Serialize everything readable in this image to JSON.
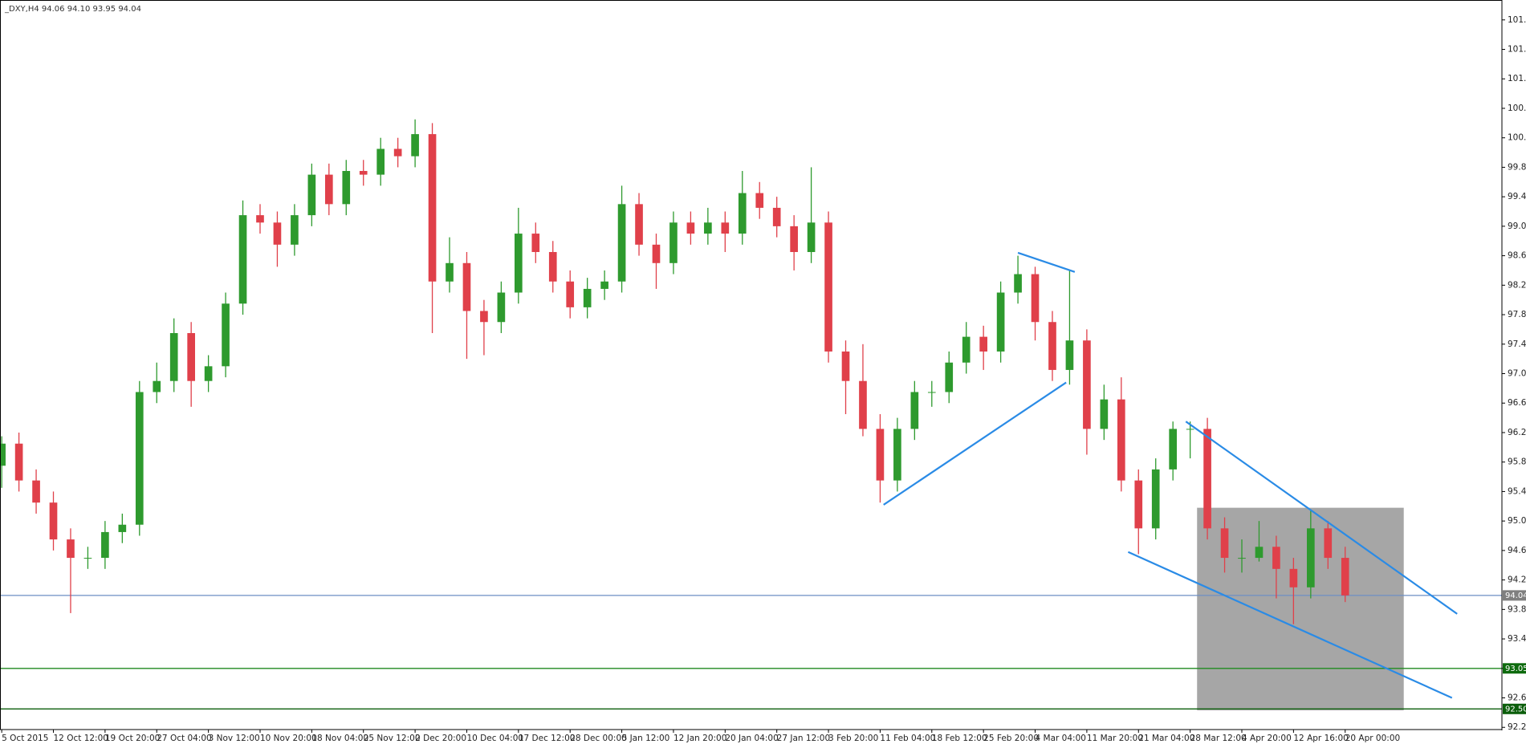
{
  "chart_data": {
    "type": "candlestick",
    "title": "_DXY,H4  94.06 94.10 93.95 94.04",
    "categories": [
      "5 Oct 2015",
      null,
      null,
      "12 Oct 12:00",
      null,
      null,
      "19 Oct 20:00",
      null,
      null,
      "27 Oct 04:00",
      null,
      null,
      "3 Nov 12:00",
      null,
      null,
      "10 Nov 20:00",
      null,
      null,
      "18 Nov 04:00",
      null,
      null,
      "25 Nov 12:00",
      null,
      null,
      "2 Dec 20:00",
      null,
      null,
      "10 Dec 04:00",
      null,
      null,
      "17 Dec 12:00",
      null,
      null,
      "28 Dec 00:00",
      null,
      null,
      "5 Jan 12:00",
      null,
      null,
      "12 Jan 20:00",
      null,
      null,
      "20 Jan 04:00",
      null,
      null,
      "27 Jan 12:00",
      null,
      null,
      "3 Feb 20:00",
      null,
      null,
      "11 Feb 04:00",
      null,
      null,
      "18 Feb 12:00",
      null,
      null,
      "25 Feb 20:00",
      null,
      null,
      "4 Mar 04:00",
      null,
      null,
      "11 Mar 20:00",
      null,
      null,
      "21 Mar 04:00",
      null,
      null,
      "28 Mar 12:00",
      null,
      null,
      "4 Apr 20:00",
      null,
      null,
      "12 Apr 16:00",
      null,
      null,
      "20 Apr 00:00"
    ],
    "open": [
      95.8,
      96.1,
      95.6,
      95.3,
      94.8,
      94.55,
      94.55,
      94.9,
      95.0,
      96.8,
      96.95,
      97.6,
      96.95,
      97.15,
      98.0,
      99.2,
      99.1,
      98.8,
      99.2,
      99.75,
      99.35,
      99.8,
      99.75,
      100.1,
      100.0,
      100.3,
      98.3,
      98.55,
      97.9,
      97.75,
      98.15,
      98.95,
      98.7,
      98.3,
      97.95,
      98.2,
      98.3,
      99.35,
      98.8,
      98.55,
      99.1,
      98.95,
      99.1,
      98.95,
      99.5,
      99.3,
      99.05,
      98.7,
      99.1,
      97.35,
      96.95,
      96.3,
      95.6,
      96.3,
      96.8,
      96.8,
      97.2,
      97.55,
      97.35,
      98.15,
      98.4,
      97.75,
      97.1,
      97.5,
      96.3,
      96.7,
      95.6,
      94.95,
      95.75,
      96.3,
      96.3,
      94.95,
      94.55,
      94.55,
      94.7,
      94.4,
      94.15,
      94.95,
      94.55
    ],
    "high": [
      96.2,
      96.25,
      95.75,
      95.45,
      94.95,
      94.7,
      95.05,
      95.15,
      96.95,
      97.2,
      97.8,
      97.75,
      97.3,
      98.15,
      99.4,
      99.35,
      99.25,
      99.35,
      99.9,
      99.9,
      99.95,
      99.95,
      100.25,
      100.25,
      100.5,
      100.45,
      98.9,
      98.7,
      98.05,
      98.3,
      99.3,
      99.1,
      98.85,
      98.45,
      98.35,
      98.45,
      99.6,
      99.5,
      98.95,
      99.25,
      99.25,
      99.3,
      99.25,
      99.8,
      99.65,
      99.45,
      99.2,
      99.85,
      99.25,
      97.5,
      97.45,
      96.5,
      96.45,
      96.95,
      96.95,
      97.35,
      97.75,
      97.7,
      98.3,
      98.65,
      98.5,
      97.9,
      98.45,
      97.65,
      96.9,
      97.0,
      95.75,
      95.9,
      96.4,
      96.4,
      96.45,
      95.1,
      94.8,
      95.05,
      94.85,
      94.55,
      95.2,
      95.05,
      94.7
    ],
    "low": [
      95.5,
      95.45,
      95.15,
      94.65,
      93.8,
      94.4,
      94.4,
      94.75,
      94.85,
      96.65,
      96.8,
      96.6,
      96.8,
      97.0,
      97.85,
      98.95,
      98.5,
      98.65,
      99.05,
      99.2,
      99.2,
      99.6,
      99.6,
      99.85,
      99.85,
      97.6,
      98.15,
      97.25,
      97.3,
      97.6,
      98.0,
      98.55,
      98.15,
      97.8,
      97.8,
      98.05,
      98.15,
      98.65,
      98.2,
      98.4,
      98.8,
      98.8,
      98.7,
      98.8,
      99.15,
      98.9,
      98.45,
      98.55,
      97.2,
      96.5,
      96.2,
      95.3,
      95.45,
      96.15,
      96.6,
      96.65,
      97.05,
      97.1,
      97.2,
      98.0,
      97.5,
      96.95,
      96.9,
      95.95,
      96.15,
      95.45,
      94.6,
      94.8,
      95.6,
      95.9,
      94.8,
      94.35,
      94.35,
      94.5,
      94.0,
      93.65,
      94.0,
      94.4,
      93.95
    ],
    "close": [
      96.1,
      95.6,
      95.3,
      94.8,
      94.55,
      94.55,
      94.9,
      95.0,
      96.8,
      96.95,
      97.6,
      96.95,
      97.15,
      98.0,
      99.2,
      99.1,
      98.8,
      99.2,
      99.75,
      99.35,
      99.8,
      99.75,
      100.1,
      100.0,
      100.3,
      98.3,
      98.55,
      97.9,
      97.75,
      98.15,
      98.95,
      98.7,
      98.3,
      97.95,
      98.2,
      98.3,
      99.35,
      98.8,
      98.55,
      99.1,
      98.95,
      99.1,
      98.95,
      99.5,
      99.3,
      99.05,
      98.7,
      99.1,
      97.35,
      96.95,
      96.3,
      95.6,
      96.3,
      96.8,
      96.8,
      97.2,
      97.55,
      97.35,
      98.15,
      98.4,
      97.75,
      97.1,
      97.5,
      96.3,
      96.7,
      95.6,
      94.95,
      95.75,
      96.3,
      96.3,
      94.95,
      94.55,
      94.55,
      94.7,
      94.4,
      94.15,
      94.95,
      94.55,
      94.04
    ],
    "up_color": "#2e9a2e",
    "down_color": "#e0404a",
    "xlim": [
      -0.1,
      87.1
    ],
    "ylim": [
      92.22,
      102.12
    ],
    "yticks": [
      101.85,
      101.45,
      101.05,
      100.65,
      100.25,
      99.85,
      99.45,
      99.05,
      98.65,
      98.25,
      97.85,
      97.45,
      97.05,
      96.65,
      96.25,
      95.85,
      95.45,
      95.05,
      94.65,
      94.25,
      93.85,
      93.45,
      93.05,
      92.65,
      92.25
    ],
    "levels": [
      {
        "value": 94.04,
        "color": "#6d8fc4",
        "box": "#7f7f7f"
      },
      {
        "value": 93.05,
        "color": "#1f8a1f",
        "box": "#0d6a0d"
      },
      {
        "value": 92.5,
        "label": "92.50",
        "color": "#0b5e0b",
        "box": "#0b5e0b"
      }
    ],
    "trendlines": {
      "color": "#2a8be6",
      "lines": [
        {
          "x": [
            51.2,
            61.8
          ],
          "y": [
            95.27,
            96.93
          ]
        },
        {
          "x": [
            59.0,
            62.3
          ],
          "y": [
            98.69,
            98.43
          ]
        },
        {
          "x": [
            68.75,
            84.5
          ],
          "y": [
            96.4,
            93.79
          ]
        },
        {
          "x": [
            65.4,
            84.2
          ],
          "y": [
            94.63,
            92.65
          ]
        }
      ]
    },
    "rectangle": {
      "x": [
        69.4,
        81.4
      ],
      "y": [
        95.23,
        92.48
      ],
      "color": "#a6a6a6"
    }
  }
}
